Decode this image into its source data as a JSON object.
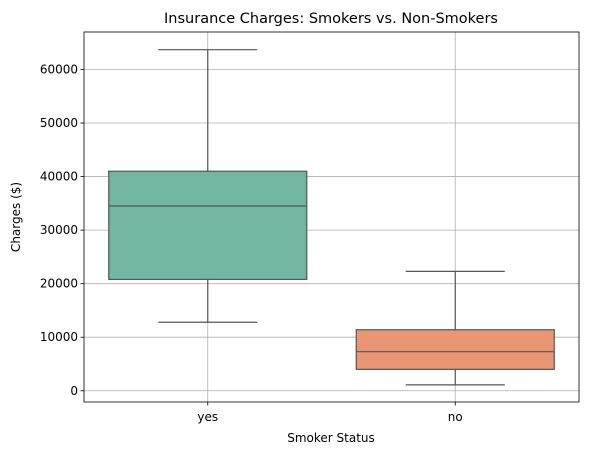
{
  "chart_data": {
    "type": "box",
    "title": "Insurance Charges: Smokers vs. Non-Smokers",
    "xlabel": "Smoker Status",
    "ylabel": "Charges ($)",
    "categories": [
      "yes",
      "no"
    ],
    "boxes": [
      {
        "category": "yes",
        "whisker_low": 12800,
        "q1": 20800,
        "median": 34500,
        "q3": 41000,
        "whisker_high": 63700,
        "color": "#72b6a1"
      },
      {
        "category": "no",
        "whisker_low": 1100,
        "q1": 4000,
        "median": 7300,
        "q3": 11400,
        "whisker_high": 22300,
        "color": "#e99675"
      }
    ],
    "ylim": [
      -2100,
      67000
    ],
    "yticks": [
      0,
      10000,
      20000,
      30000,
      40000,
      50000,
      60000
    ],
    "ytick_labels": [
      "0",
      "10000",
      "20000",
      "30000",
      "40000",
      "50000",
      "60000"
    ],
    "grid": true,
    "legend": "none",
    "colors": {
      "grid": "#b0b0b0",
      "box_edge": "#555555"
    }
  }
}
